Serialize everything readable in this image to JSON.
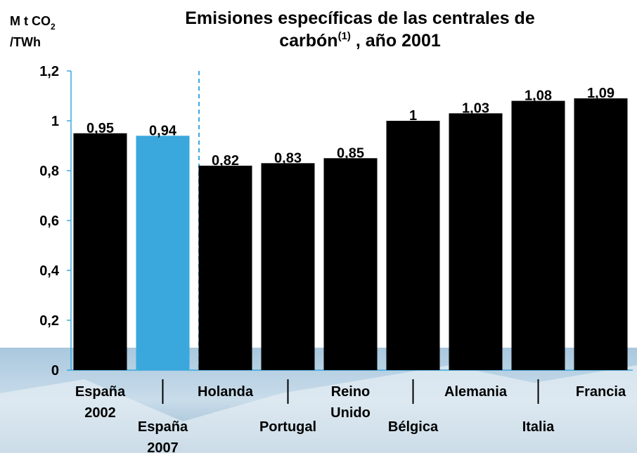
{
  "chart_data": {
    "type": "bar",
    "title": [
      "Emisiones específicas de las centrales de",
      "carbón",
      "(1)",
      " , año 2001"
    ],
    "y_label": [
      "M t CO",
      "2",
      "/TWh"
    ],
    "categories": [
      [
        "España",
        "2002"
      ],
      [
        "España",
        "2007"
      ],
      [
        "Holanda"
      ],
      [
        "Portugal"
      ],
      [
        "Reino",
        "Unido"
      ],
      [
        "Bélgica"
      ],
      [
        "Alemania"
      ],
      [
        "Italia"
      ],
      [
        "Francia"
      ]
    ],
    "values": [
      0.95,
      0.94,
      0.82,
      0.83,
      0.85,
      1,
      1.03,
      1.08,
      1.09
    ],
    "value_labels": [
      "0,95",
      "0,94",
      "0,82",
      "0,83",
      "0,85",
      "1",
      "1,03",
      "1,08",
      "1,09"
    ],
    "colors": [
      "#000000",
      "#3aa8dc",
      "#000000",
      "#000000",
      "#000000",
      "#000000",
      "#000000",
      "#000000",
      "#000000"
    ],
    "ylim": [
      0,
      1.2
    ],
    "yticks": [
      0,
      {
        "value": 0.2,
        "label": "0,2"
      },
      {
        "value": 0.4,
        "label": "0,4"
      },
      {
        "value": 0.6,
        "label": "0,6"
      },
      {
        "value": 0.8,
        "label": "0,8"
      },
      1,
      {
        "value": 1.2,
        "label": "1,2"
      }
    ]
  }
}
